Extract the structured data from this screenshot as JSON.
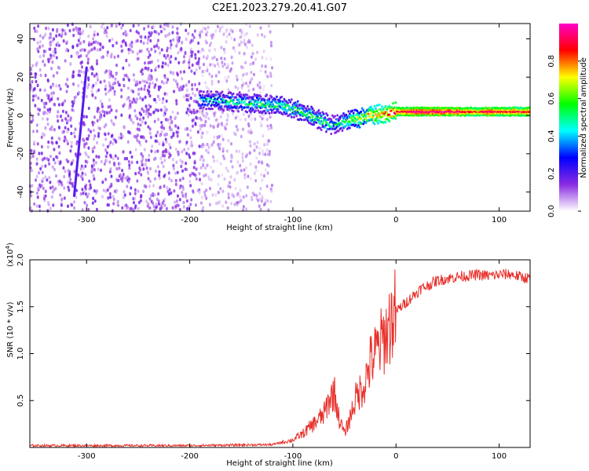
{
  "title": "C2E1.2023.279.20.41.G07",
  "chart_data": [
    {
      "type": "heatmap",
      "xlabel": "Height of straight line (km)",
      "ylabel": "Frequency (Hz)",
      "xlim": [
        -355,
        130
      ],
      "ylim": [
        -50,
        48
      ],
      "xticks": [
        -300,
        -200,
        -100,
        0,
        100
      ],
      "yticks": [
        -40,
        -20,
        0,
        20,
        40
      ],
      "colorbar": {
        "label": "Normalized spectral amplitude",
        "range": [
          0,
          1
        ],
        "ticks": [
          "0.0",
          "0.2",
          "0.4",
          "0.6",
          "0.8"
        ],
        "colors": [
          "#ffffff",
          "#8a2be2",
          "#0000ff",
          "#00ffff",
          "#00ff00",
          "#ffff00",
          "#ff0000",
          "#ff00c8"
        ]
      },
      "ridge": {
        "x": [
          -190,
          -150,
          -110,
          -90,
          -75,
          -62,
          -50,
          -40,
          -25,
          -10,
          0,
          20,
          60,
          80,
          90,
          100,
          130
        ],
        "freq": [
          8,
          7,
          5,
          2,
          -2,
          -5,
          -3,
          -2,
          0,
          1,
          2,
          2,
          2,
          2,
          2,
          2,
          2
        ],
        "amplitude": [
          0.45,
          0.5,
          0.55,
          0.55,
          0.55,
          0.5,
          0.55,
          0.65,
          0.75,
          0.85,
          0.9,
          0.95,
          0.95,
          0.85,
          0.95,
          0.9,
          0.9
        ]
      },
      "streak": {
        "x": [
          -312,
          -300
        ],
        "freq": [
          -42,
          25
        ],
        "amplitude": 0.2
      },
      "scatter_noise": [
        {
          "x_range": [
            -355,
            -190
          ],
          "freq_range": [
            -50,
            48
          ],
          "density": "high"
        },
        {
          "x_range": [
            -190,
            -120
          ],
          "freq_range": [
            -50,
            48
          ],
          "density": "medium"
        }
      ]
    },
    {
      "type": "line",
      "xlabel": "Height of straight line (km)",
      "ylabel": "SNR (10 * v/v)",
      "exponent_label": "(x10",
      "exponent_power": "4",
      "exponent_close": ")",
      "xlim": [
        -355,
        130
      ],
      "ylim": [
        0,
        20000
      ],
      "xticks": [
        -300,
        -200,
        -100,
        0,
        100
      ],
      "ytick_labels": [
        "0.5",
        "1.0",
        "1.5",
        "2.0"
      ],
      "ytick_values": [
        5000,
        10000,
        15000,
        20000
      ],
      "color": "#e8302a",
      "series": [
        {
          "x": [
            -355,
            -300,
            -200,
            -120,
            -100,
            -90,
            -80,
            -70,
            -65,
            -60,
            -55,
            -50,
            -45,
            -40,
            -35,
            -30,
            -25,
            -20,
            -15,
            -10,
            -5,
            0,
            5,
            10,
            15,
            20,
            25,
            30,
            40,
            50,
            60,
            70,
            80,
            90,
            100,
            110,
            120,
            130
          ],
          "values": [
            200,
            200,
            200,
            300,
            800,
            1500,
            2500,
            3500,
            5000,
            6000,
            3000,
            1500,
            3000,
            5000,
            6000,
            7000,
            9000,
            10000,
            11000,
            12000,
            13500,
            14500,
            15000,
            15500,
            16000,
            16500,
            17000,
            17200,
            17800,
            18000,
            18200,
            18300,
            18400,
            18300,
            18400,
            18500,
            18200,
            18000
          ]
        }
      ]
    }
  ]
}
